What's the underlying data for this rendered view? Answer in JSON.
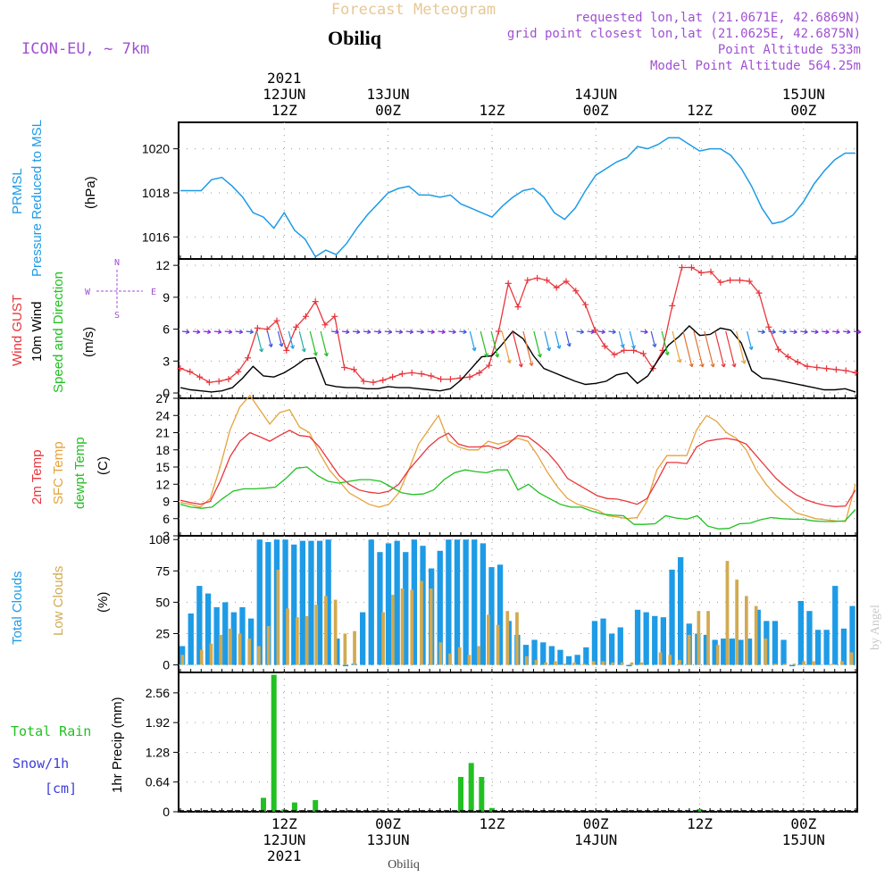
{
  "header": {
    "title": "Forecast Meteogram",
    "location": "Obiliq",
    "model": "ICON-EU, ~ 7km",
    "requested": "requested lon,lat (21.0671E, 42.6869N)",
    "grid_point": "grid point closest lon,lat (21.0625E, 42.6875N)",
    "point_altitude": "Point Altitude 533m",
    "model_altitude": "Model Point Altitude 564.25m"
  },
  "time_axis": {
    "n_steps": 66,
    "top_labels": [
      {
        "step": 10,
        "lines": [
          "2021",
          "12JUN",
          "12Z"
        ]
      },
      {
        "step": 20,
        "lines": [
          "13JUN",
          "00Z"
        ]
      },
      {
        "step": 30,
        "lines": [
          "12Z"
        ]
      },
      {
        "step": 40,
        "lines": [
          "14JUN",
          "00Z"
        ]
      },
      {
        "step": 50,
        "lines": [
          "12Z"
        ]
      },
      {
        "step": 60,
        "lines": [
          "15JUN",
          "00Z"
        ]
      }
    ],
    "bottom_labels": [
      {
        "step": 10,
        "lines": [
          "12Z",
          "12JUN",
          "2021"
        ]
      },
      {
        "step": 20,
        "lines": [
          "00Z",
          "13JUN"
        ]
      },
      {
        "step": 30,
        "lines": [
          "12Z"
        ]
      },
      {
        "step": 40,
        "lines": [
          "00Z",
          "14JUN"
        ]
      },
      {
        "step": 50,
        "lines": [
          "12Z"
        ]
      },
      {
        "step": 60,
        "lines": [
          "00Z",
          "15JUN"
        ]
      }
    ],
    "footer_location": "Obiliq"
  },
  "panel_labels": {
    "pressure": {
      "line1": "PRMSL",
      "line2": "Pressure Reduced to MSL",
      "unit": "(hPa)"
    },
    "wind": {
      "gust": "Wind GUST",
      "wind10": "10m Wind",
      "speed_dir": "Speed and Direction",
      "unit": "(m/s)",
      "compass_n": "N",
      "compass_s": "S",
      "compass_e": "E",
      "compass_w": "W"
    },
    "temp": {
      "t2m": "2m Temp",
      "sfc": "SFC Temp",
      "dewpt": "dewpt Temp",
      "unit": "(C)"
    },
    "clouds": {
      "total": "Total Clouds",
      "low": "Low Clouds",
      "unit": "(%)"
    },
    "precip": {
      "rain": "Total Rain",
      "snow": "Snow/1h",
      "cm": "[cm]",
      "unit": "1hr Precip (mm)"
    },
    "credit": "by Angel"
  },
  "colors": {
    "pressure": "#1e9be6",
    "gust": "#e8363c",
    "wind10": "#000000",
    "t2m": "#e8363c",
    "sfc": "#e6a33c",
    "dewpt": "#22c022",
    "total_clouds": "#1e9be6",
    "low_clouds": "#d2aa50",
    "rain": "#22c022",
    "snow": "#3c3cdc",
    "model_text": "#a050d2",
    "title_text": "#e6c896",
    "grid": "#999999"
  },
  "chart_data": [
    {
      "type": "line",
      "title": "PRMSL Pressure Reduced to MSL",
      "ylabel": "hPa",
      "ylim": [
        1015.0,
        1021.2
      ],
      "yticks": [
        "1016",
        "1018",
        "1020"
      ],
      "series": [
        {
          "name": "PRMSL",
          "values": [
            1018.1,
            1018.1,
            1018.1,
            1018.6,
            1018.7,
            1018.3,
            1017.8,
            1017.1,
            1016.9,
            1016.4,
            1017.1,
            1016.3,
            1015.9,
            1015.1,
            1015.4,
            1015.2,
            1015.7,
            1016.4,
            1017.0,
            1017.5,
            1018.0,
            1018.2,
            1018.3,
            1017.9,
            1017.9,
            1017.8,
            1017.9,
            1017.5,
            1017.3,
            1017.1,
            1016.9,
            1017.4,
            1017.8,
            1018.1,
            1018.2,
            1017.8,
            1017.1,
            1016.8,
            1017.3,
            1018.1,
            1018.8,
            1019.1,
            1019.4,
            1019.6,
            1020.1,
            1020.0,
            1020.2,
            1020.5,
            1020.5,
            1020.2,
            1019.9,
            1020.0,
            1020.0,
            1019.7,
            1019.1,
            1018.3,
            1017.3,
            1016.6,
            1016.7,
            1017.0,
            1017.6,
            1018.4,
            1019.0,
            1019.5,
            1019.8,
            1019.8
          ]
        }
      ]
    },
    {
      "type": "line",
      "title": "Wind GUST / 10m Wind Speed and Direction",
      "ylabel": "m/s",
      "ylim": [
        -0.5,
        12.6
      ],
      "yticks": [
        "0",
        "3",
        "6",
        "9",
        "12"
      ],
      "series": [
        {
          "name": "Wind GUST",
          "values": [
            2.3,
            2.0,
            1.5,
            1.0,
            1.1,
            1.3,
            2.0,
            3.3,
            6.1,
            6.0,
            6.8,
            4.0,
            6.2,
            7.2,
            8.6,
            6.4,
            7.2,
            2.4,
            2.2,
            1.1,
            1.0,
            1.2,
            1.5,
            1.8,
            1.9,
            1.8,
            1.6,
            1.3,
            1.3,
            1.4,
            1.5,
            1.9,
            2.6,
            5.8,
            10.3,
            8.1,
            10.6,
            10.8,
            10.6,
            9.9,
            10.5,
            9.6,
            8.3,
            5.9,
            4.4,
            3.6,
            4.0,
            4.0,
            3.7,
            2.3,
            4.0,
            8.2,
            11.8,
            11.8,
            11.3,
            11.4,
            10.4,
            10.6,
            10.6,
            10.5,
            9.4,
            6.2,
            4.1,
            3.4,
            2.9,
            2.5,
            2.4,
            2.3,
            2.2,
            2.1,
            1.9
          ]
        },
        {
          "name": "10m Wind",
          "values": [
            0.5,
            0.3,
            0.2,
            0.1,
            0.2,
            0.5,
            1.4,
            2.5,
            1.6,
            1.5,
            1.9,
            2.5,
            3.2,
            3.3,
            0.8,
            0.6,
            0.5,
            0.5,
            0.4,
            0.4,
            0.6,
            0.5,
            0.5,
            0.4,
            0.3,
            0.2,
            0.4,
            1.2,
            2.3,
            3.4,
            3.5,
            4.6,
            5.8,
            5.1,
            3.5,
            2.3,
            1.9,
            1.5,
            1.1,
            0.8,
            0.9,
            1.1,
            1.7,
            1.9,
            0.9,
            1.6,
            3.1,
            4.5,
            5.3,
            6.3,
            5.4,
            5.5,
            6.1,
            5.9,
            4.7,
            2.1,
            1.4,
            1.3,
            1.1,
            0.9,
            0.7,
            0.5,
            0.3,
            0.3,
            0.4,
            0.1
          ]
        }
      ],
      "arrows_level": 5.8
    },
    {
      "type": "line",
      "title": "2m Temp / SFC Temp / dewpt Temp",
      "ylabel": "C",
      "ylim": [
        3,
        27
      ],
      "yticks": [
        "3",
        "6",
        "9",
        "12",
        "15",
        "18",
        "21",
        "24",
        "27"
      ],
      "series": [
        {
          "name": "2m Temp",
          "values": [
            9.2,
            8.8,
            8.5,
            9.0,
            12.5,
            16.8,
            19.5,
            21.0,
            20.3,
            19.5,
            20.5,
            21.4,
            20.5,
            20.3,
            18.5,
            16.0,
            13.5,
            12.0,
            11.0,
            10.6,
            10.4,
            10.8,
            12.0,
            14.5,
            16.5,
            18.5,
            20.0,
            20.9,
            19.0,
            18.5,
            18.5,
            18.7,
            18.2,
            19.0,
            20.5,
            20.3,
            19.0,
            17.5,
            15.5,
            13.0,
            12.0,
            11.0,
            10.0,
            9.5,
            9.4,
            9.0,
            8.5,
            9.5,
            12.5,
            15.8,
            15.8,
            15.6,
            18.5,
            19.5,
            19.8,
            20.0,
            19.7,
            19.0,
            17.0,
            15.0,
            13.0,
            11.5,
            10.2,
            9.3,
            8.7,
            8.3,
            8.1,
            8.2,
            11.0
          ]
        },
        {
          "name": "SFC Temp",
          "values": [
            8.8,
            8.5,
            8.0,
            9.5,
            15.0,
            21.5,
            25.5,
            27.5,
            25.0,
            22.5,
            24.5,
            25.0,
            22.0,
            21.0,
            17.5,
            14.5,
            12.5,
            10.5,
            9.5,
            8.5,
            8.0,
            8.5,
            10.5,
            14.5,
            19.0,
            21.5,
            24.0,
            19.5,
            18.5,
            18.0,
            18.0,
            19.5,
            19.0,
            19.5,
            20.0,
            19.5,
            17.0,
            14.0,
            11.5,
            9.5,
            8.5,
            8.0,
            7.5,
            6.5,
            6.3,
            6.0,
            6.2,
            9.0,
            14.5,
            17.0,
            17.0,
            17.0,
            21.5,
            24.0,
            23.0,
            21.0,
            20.0,
            18.0,
            14.5,
            12.0,
            10.0,
            8.5,
            7.0,
            6.5,
            6.0,
            5.8,
            5.6,
            5.5,
            12.0
          ]
        },
        {
          "name": "dewpt Temp",
          "values": [
            8.5,
            8.0,
            7.8,
            8.0,
            9.5,
            10.8,
            11.2,
            11.2,
            11.3,
            11.5,
            13.0,
            14.8,
            15.0,
            13.5,
            12.5,
            12.2,
            12.5,
            12.8,
            12.8,
            12.5,
            11.5,
            10.5,
            10.2,
            10.3,
            11.0,
            12.8,
            14.0,
            14.5,
            14.2,
            14.0,
            14.5,
            14.5,
            11.0,
            12.0,
            10.5,
            9.5,
            8.5,
            8.0,
            8.0,
            7.3,
            6.8,
            6.6,
            6.5,
            5.0,
            5.0,
            5.1,
            6.5,
            6.1,
            5.9,
            6.5,
            4.7,
            4.2,
            4.3,
            5.1,
            5.2,
            5.8,
            6.2,
            6.0,
            5.9,
            5.9,
            5.6,
            5.5,
            5.5,
            5.6,
            7.6
          ]
        }
      ]
    },
    {
      "type": "bar",
      "title": "Total Clouds / Low Clouds",
      "ylabel": "%",
      "ylim": [
        -6,
        103
      ],
      "yticks": [
        "0",
        "25",
        "50",
        "75",
        "100"
      ],
      "series": [
        {
          "name": "Total Clouds",
          "values": [
            15,
            41,
            63,
            57,
            46,
            50,
            42,
            46,
            37,
            100,
            98,
            100,
            100,
            96,
            99,
            99,
            99,
            100,
            21,
            0,
            1,
            42,
            100,
            90,
            97,
            99,
            90,
            100,
            95,
            77,
            91,
            100,
            100,
            100,
            100,
            97,
            78,
            80,
            35,
            24,
            16,
            20,
            18,
            15,
            12,
            7,
            8,
            14,
            35,
            37,
            25,
            30,
            0,
            44,
            42,
            39,
            38,
            76,
            86,
            33,
            25,
            24,
            20,
            21,
            21,
            20,
            21,
            44,
            35,
            35,
            20,
            0,
            51,
            43,
            28,
            28,
            63,
            29,
            47
          ]
        },
        {
          "name": "Low Clouds",
          "values": [
            8,
            0,
            12,
            17,
            24,
            29,
            25,
            21,
            15,
            31,
            76,
            45,
            38,
            39,
            48,
            55,
            52,
            25,
            27,
            0,
            0,
            42,
            56,
            61,
            60,
            67,
            61,
            18,
            9,
            14,
            8,
            15,
            40,
            32,
            43,
            42,
            7,
            4,
            2,
            3,
            1,
            2,
            1,
            3,
            3,
            2,
            2,
            2,
            2,
            0,
            10,
            8,
            4,
            24,
            43,
            43,
            16,
            83,
            68,
            55,
            47,
            21,
            1,
            1,
            1,
            3,
            3,
            0,
            1,
            3,
            10
          ]
        }
      ]
    },
    {
      "type": "bar",
      "title": "1hr Precip (mm)",
      "ylabel": "1hr Precip (mm)",
      "ylim": [
        0,
        3.0
      ],
      "yticks": [
        "0",
        "0.64",
        "1.28",
        "1.92",
        "2.56"
      ],
      "series": [
        {
          "name": "Total Rain",
          "values": [
            0,
            0,
            0,
            0,
            0,
            0,
            0,
            0,
            0.3,
            2.95,
            0.05,
            0.2,
            0,
            0.25,
            0,
            0,
            0,
            0,
            0,
            0,
            0,
            0,
            0,
            0,
            0,
            0,
            0,
            0.75,
            1.05,
            0.75,
            0.08,
            0,
            0,
            0,
            0,
            0,
            0,
            0,
            0,
            0,
            0,
            0,
            0,
            0,
            0,
            0,
            0,
            0,
            0,
            0,
            0.06,
            0,
            0,
            0,
            0,
            0,
            0,
            0,
            0,
            0,
            0,
            0,
            0,
            0,
            0,
            0
          ]
        }
      ]
    }
  ]
}
